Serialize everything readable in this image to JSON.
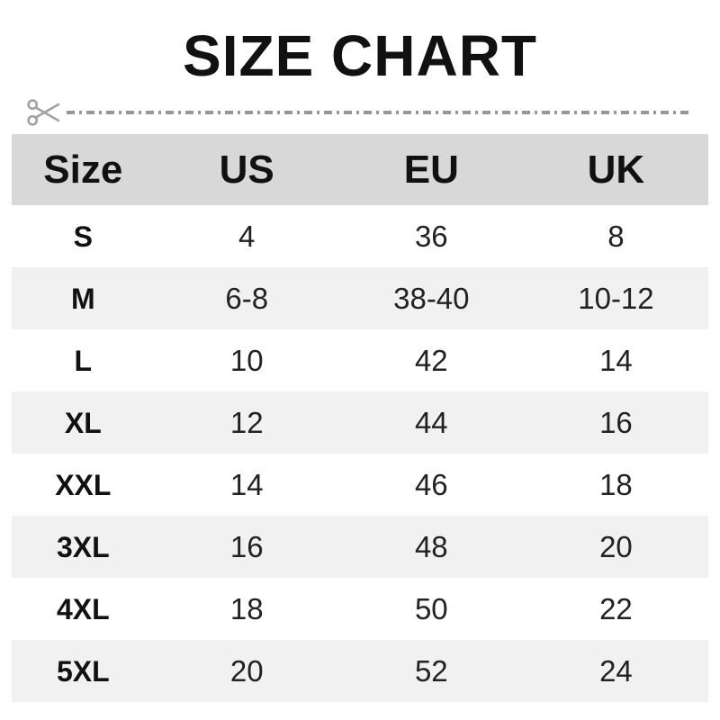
{
  "title": "SIZE CHART",
  "cut_line": {
    "icon": "scissors-icon",
    "color": "#9a9a9a"
  },
  "colors": {
    "header_bg": "#d8d8d8",
    "alt_row_bg": "#f1f1f1",
    "text": "#111111",
    "cut_line": "#969696"
  },
  "chart_data": {
    "type": "table",
    "title": "SIZE CHART",
    "columns": [
      "Size",
      "US",
      "EU",
      "UK"
    ],
    "rows": [
      [
        "S",
        "4",
        "36",
        "8"
      ],
      [
        "M",
        "6-8",
        "38-40",
        "10-12"
      ],
      [
        "L",
        "10",
        "42",
        "14"
      ],
      [
        "XL",
        "12",
        "44",
        "16"
      ],
      [
        "XXL",
        "14",
        "46",
        "18"
      ],
      [
        "3XL",
        "16",
        "48",
        "20"
      ],
      [
        "4XL",
        "18",
        "50",
        "22"
      ],
      [
        "5XL",
        "20",
        "52",
        "24"
      ]
    ]
  }
}
